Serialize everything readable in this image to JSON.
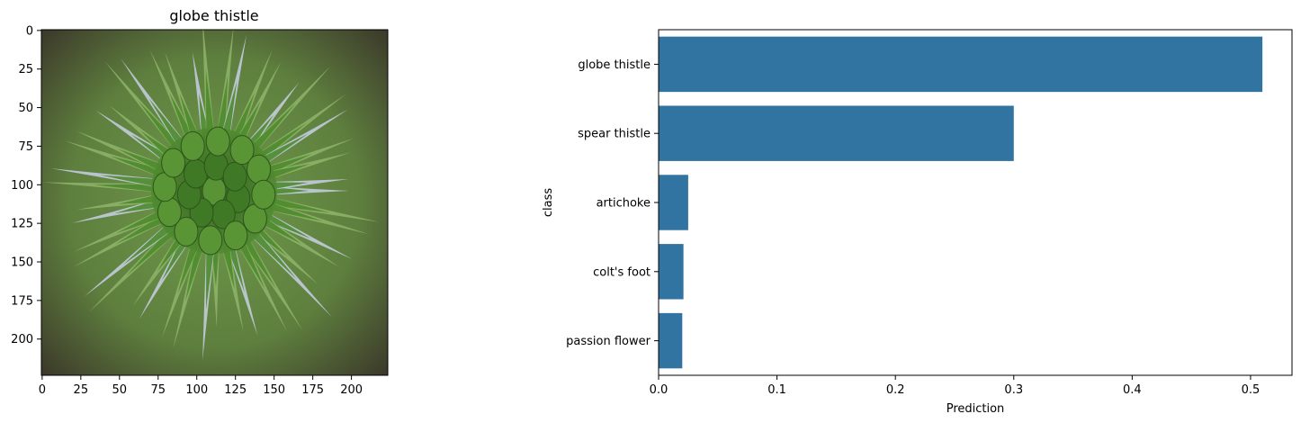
{
  "left_panel": {
    "title": "globe thistle",
    "image_subject": "globe-thistle-flower-head-photo",
    "xticks": [
      0,
      25,
      50,
      75,
      100,
      125,
      150,
      175,
      200
    ],
    "yticks": [
      0,
      25,
      50,
      75,
      100,
      125,
      150,
      175,
      200
    ],
    "xlim": [
      -0.5,
      223.5
    ],
    "ylim": [
      223.5,
      -0.5
    ]
  },
  "chart_data": {
    "type": "bar",
    "orientation": "horizontal",
    "categories": [
      "globe thistle",
      "spear thistle",
      "artichoke",
      "colt's foot",
      "passion flower"
    ],
    "values": [
      0.51,
      0.3,
      0.025,
      0.021,
      0.02
    ],
    "xlabel": "Prediction",
    "ylabel": "class",
    "xlim": [
      0,
      0.535
    ],
    "xticks": [
      0.0,
      0.1,
      0.2,
      0.3,
      0.4,
      0.5
    ],
    "color": "#3274a1",
    "grid": false
  }
}
